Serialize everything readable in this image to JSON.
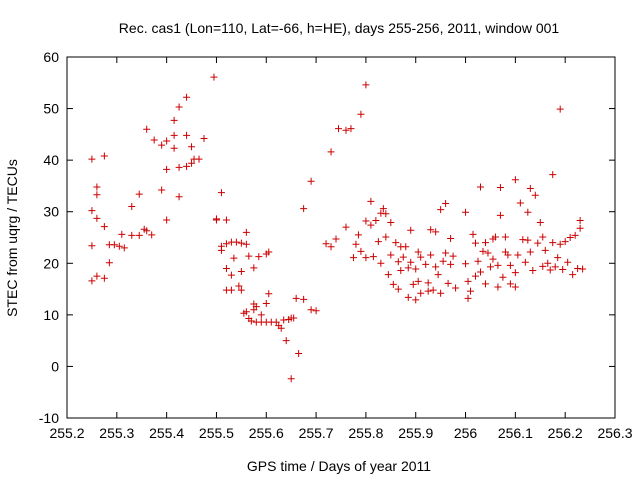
{
  "chart_data": {
    "type": "scatter",
    "title": "Rec. cas1 (Lon=110, Lat=-66, h=HE), days 255-256, 2011, window 001",
    "xlabel": "GPS time / Days of year 2011",
    "ylabel": "STEC from uqrg / TECUs",
    "xlim": [
      255.2,
      256.3
    ],
    "ylim": [
      -10,
      60
    ],
    "xticks": [
      255.2,
      255.3,
      255.4,
      255.5,
      255.6,
      255.7,
      255.8,
      255.9,
      256.0,
      256.1,
      256.2,
      256.3
    ],
    "xtick_labels": [
      "255.2",
      "255.3",
      "255.4",
      "255.5",
      "255.6",
      "255.7",
      "255.8",
      "255.9",
      "256",
      "256.1",
      "256.2",
      "256.3"
    ],
    "yticks": [
      -10,
      0,
      10,
      20,
      30,
      40,
      50,
      60
    ],
    "ytick_labels": [
      "-10",
      "0",
      "10",
      "20",
      "30",
      "40",
      "50",
      "60"
    ],
    "grid": false,
    "marker": "+",
    "color": "#cc0000",
    "series": [
      {
        "name": "STEC",
        "points": [
          [
            255.25,
            40.2
          ],
          [
            255.25,
            30.2
          ],
          [
            255.25,
            23.4
          ],
          [
            255.25,
            16.6
          ],
          [
            255.26,
            34.8
          ],
          [
            255.26,
            33.3
          ],
          [
            255.26,
            28.7
          ],
          [
            255.26,
            17.5
          ],
          [
            255.275,
            40.8
          ],
          [
            255.275,
            27.1
          ],
          [
            255.275,
            17.1
          ],
          [
            255.285,
            20.1
          ],
          [
            255.285,
            23.6
          ],
          [
            255.295,
            23.6
          ],
          [
            255.305,
            23.3
          ],
          [
            255.31,
            25.6
          ],
          [
            255.315,
            23.0
          ],
          [
            255.33,
            25.4
          ],
          [
            255.33,
            31.0
          ],
          [
            255.345,
            33.4
          ],
          [
            255.345,
            25.4
          ],
          [
            255.355,
            26.6
          ],
          [
            255.36,
            46.0
          ],
          [
            255.36,
            26.3
          ],
          [
            255.37,
            25.5
          ],
          [
            255.375,
            43.9
          ],
          [
            255.39,
            42.9
          ],
          [
            255.39,
            34.2
          ],
          [
            255.4,
            43.7
          ],
          [
            255.4,
            38.2
          ],
          [
            255.4,
            28.4
          ],
          [
            255.415,
            47.7
          ],
          [
            255.415,
            44.8
          ],
          [
            255.415,
            42.3
          ],
          [
            255.425,
            50.3
          ],
          [
            255.425,
            38.6
          ],
          [
            255.425,
            32.9
          ],
          [
            255.44,
            52.2
          ],
          [
            255.44,
            44.8
          ],
          [
            255.44,
            38.8
          ],
          [
            255.45,
            42.6
          ],
          [
            255.45,
            39.4
          ],
          [
            255.455,
            40.2
          ],
          [
            255.465,
            40.2
          ],
          [
            255.475,
            44.2
          ],
          [
            255.495,
            56.1
          ],
          [
            255.5,
            28.6
          ],
          [
            255.5,
            28.4
          ],
          [
            255.51,
            33.7
          ],
          [
            255.51,
            23.3
          ],
          [
            255.51,
            22.5
          ],
          [
            255.52,
            28.4
          ],
          [
            255.52,
            23.8
          ],
          [
            255.52,
            19.0
          ],
          [
            255.52,
            14.8
          ],
          [
            255.53,
            24.1
          ],
          [
            255.53,
            17.7
          ],
          [
            255.53,
            14.8
          ],
          [
            255.535,
            21.0
          ],
          [
            255.54,
            24.1
          ],
          [
            255.545,
            15.6
          ],
          [
            255.55,
            23.9
          ],
          [
            255.55,
            18.4
          ],
          [
            255.55,
            14.8
          ],
          [
            255.555,
            10.3
          ],
          [
            255.56,
            23.7
          ],
          [
            255.56,
            26.0
          ],
          [
            255.56,
            10.6
          ],
          [
            255.565,
            21.4
          ],
          [
            255.565,
            9.3
          ],
          [
            255.57,
            8.8
          ],
          [
            255.575,
            12.1
          ],
          [
            255.575,
            11.0
          ],
          [
            255.575,
            19.1
          ],
          [
            255.58,
            11.6
          ],
          [
            255.58,
            8.6
          ],
          [
            255.585,
            21.3
          ],
          [
            255.59,
            10.0
          ],
          [
            255.59,
            8.6
          ],
          [
            255.6,
            21.8
          ],
          [
            255.6,
            8.6
          ],
          [
            255.6,
            12.2
          ],
          [
            255.605,
            14.1
          ],
          [
            255.605,
            22.2
          ],
          [
            255.61,
            8.6
          ],
          [
            255.62,
            8.6
          ],
          [
            255.625,
            7.9
          ],
          [
            255.63,
            7.4
          ],
          [
            255.635,
            9.0
          ],
          [
            255.64,
            5.0
          ],
          [
            255.645,
            9.1
          ],
          [
            255.65,
            9.4
          ],
          [
            255.65,
            -2.4
          ],
          [
            255.655,
            9.4
          ],
          [
            255.66,
            13.2
          ],
          [
            255.665,
            2.5
          ],
          [
            255.675,
            13.0
          ],
          [
            255.675,
            30.6
          ],
          [
            255.69,
            35.9
          ],
          [
            255.69,
            11.0
          ],
          [
            255.7,
            10.8
          ],
          [
            255.72,
            23.8
          ],
          [
            255.73,
            23.2
          ],
          [
            255.73,
            41.6
          ],
          [
            255.74,
            24.7
          ],
          [
            255.745,
            46.1
          ],
          [
            255.76,
            45.8
          ],
          [
            255.76,
            27.0
          ],
          [
            255.77,
            46.1
          ],
          [
            255.775,
            21.1
          ],
          [
            255.78,
            23.7
          ],
          [
            255.785,
            25.5
          ],
          [
            255.79,
            48.9
          ],
          [
            255.79,
            22.3
          ],
          [
            255.8,
            54.6
          ],
          [
            255.8,
            28.2
          ],
          [
            255.8,
            21.1
          ],
          [
            255.81,
            27.4
          ],
          [
            255.81,
            32.0
          ],
          [
            255.815,
            21.3
          ],
          [
            255.82,
            28.3
          ],
          [
            255.825,
            24.2
          ],
          [
            255.83,
            29.7
          ],
          [
            255.83,
            20.0
          ],
          [
            255.835,
            30.6
          ],
          [
            255.84,
            29.6
          ],
          [
            255.84,
            25.1
          ],
          [
            255.845,
            17.8
          ],
          [
            255.85,
            27.9
          ],
          [
            255.85,
            21.6
          ],
          [
            255.855,
            15.9
          ],
          [
            255.86,
            24.0
          ],
          [
            255.865,
            20.3
          ],
          [
            255.865,
            15.0
          ],
          [
            255.87,
            23.2
          ],
          [
            255.87,
            18.6
          ],
          [
            255.875,
            21.2
          ],
          [
            255.88,
            23.2
          ],
          [
            255.885,
            19.1
          ],
          [
            255.885,
            13.4
          ],
          [
            255.89,
            20.2
          ],
          [
            255.89,
            26.4
          ],
          [
            255.895,
            15.9
          ],
          [
            255.9,
            12.9
          ],
          [
            255.9,
            18.9
          ],
          [
            255.905,
            22.2
          ],
          [
            255.905,
            16.5
          ],
          [
            255.91,
            21.2
          ],
          [
            255.91,
            14.2
          ],
          [
            255.92,
            19.8
          ],
          [
            255.925,
            16.2
          ],
          [
            255.925,
            14.6
          ],
          [
            255.93,
            26.5
          ],
          [
            255.93,
            21.6
          ],
          [
            255.935,
            14.8
          ],
          [
            255.94,
            26.1
          ],
          [
            255.94,
            19.3
          ],
          [
            255.945,
            17.8
          ],
          [
            255.95,
            30.4
          ],
          [
            255.95,
            14.2
          ],
          [
            255.955,
            20.4
          ],
          [
            255.96,
            31.6
          ],
          [
            255.96,
            22.0
          ],
          [
            255.965,
            16.1
          ],
          [
            255.97,
            24.8
          ],
          [
            255.97,
            19.8
          ],
          [
            255.975,
            21.4
          ],
          [
            255.98,
            15.2
          ],
          [
            256.0,
            29.9
          ],
          [
            256.0,
            19.9
          ],
          [
            256.005,
            16.5
          ],
          [
            256.005,
            13.2
          ],
          [
            256.01,
            14.6
          ],
          [
            256.015,
            25.6
          ],
          [
            256.02,
            23.9
          ],
          [
            256.02,
            17.5
          ],
          [
            256.025,
            20.4
          ],
          [
            256.03,
            34.8
          ],
          [
            256.03,
            18.3
          ],
          [
            256.035,
            22.3
          ],
          [
            256.04,
            24.0
          ],
          [
            256.04,
            16.0
          ],
          [
            256.045,
            22.0
          ],
          [
            256.05,
            19.3
          ],
          [
            256.055,
            24.7
          ],
          [
            256.055,
            20.8
          ],
          [
            256.06,
            25.1
          ],
          [
            256.065,
            19.6
          ],
          [
            256.065,
            15.4
          ],
          [
            256.07,
            34.7
          ],
          [
            256.07,
            29.3
          ],
          [
            256.075,
            17.3
          ],
          [
            256.08,
            25.1
          ],
          [
            256.08,
            22.2
          ],
          [
            256.085,
            21.6
          ],
          [
            256.09,
            16.0
          ],
          [
            256.09,
            19.6
          ],
          [
            256.1,
            36.2
          ],
          [
            256.1,
            18.2
          ],
          [
            256.1,
            15.4
          ],
          [
            256.105,
            21.6
          ],
          [
            256.11,
            31.7
          ],
          [
            256.115,
            24.6
          ],
          [
            256.12,
            20.2
          ],
          [
            256.125,
            29.9
          ],
          [
            256.125,
            24.5
          ],
          [
            256.13,
            34.5
          ],
          [
            256.13,
            22.2
          ],
          [
            256.135,
            18.6
          ],
          [
            256.14,
            33.2
          ],
          [
            256.145,
            23.9
          ],
          [
            256.15,
            27.9
          ],
          [
            256.155,
            25.1
          ],
          [
            256.155,
            19.4
          ],
          [
            256.16,
            22.5
          ],
          [
            256.165,
            20.0
          ],
          [
            256.17,
            18.7
          ],
          [
            256.175,
            37.2
          ],
          [
            256.175,
            24.0
          ],
          [
            256.18,
            19.3
          ],
          [
            256.185,
            21.1
          ],
          [
            256.19,
            49.9
          ],
          [
            256.19,
            23.7
          ],
          [
            256.195,
            18.8
          ],
          [
            256.2,
            24.2
          ],
          [
            256.205,
            20.2
          ],
          [
            256.21,
            25.0
          ],
          [
            256.215,
            17.8
          ],
          [
            256.22,
            25.4
          ],
          [
            256.225,
            19.0
          ],
          [
            256.23,
            28.3
          ],
          [
            256.23,
            26.8
          ],
          [
            256.235,
            18.9
          ]
        ]
      }
    ]
  }
}
